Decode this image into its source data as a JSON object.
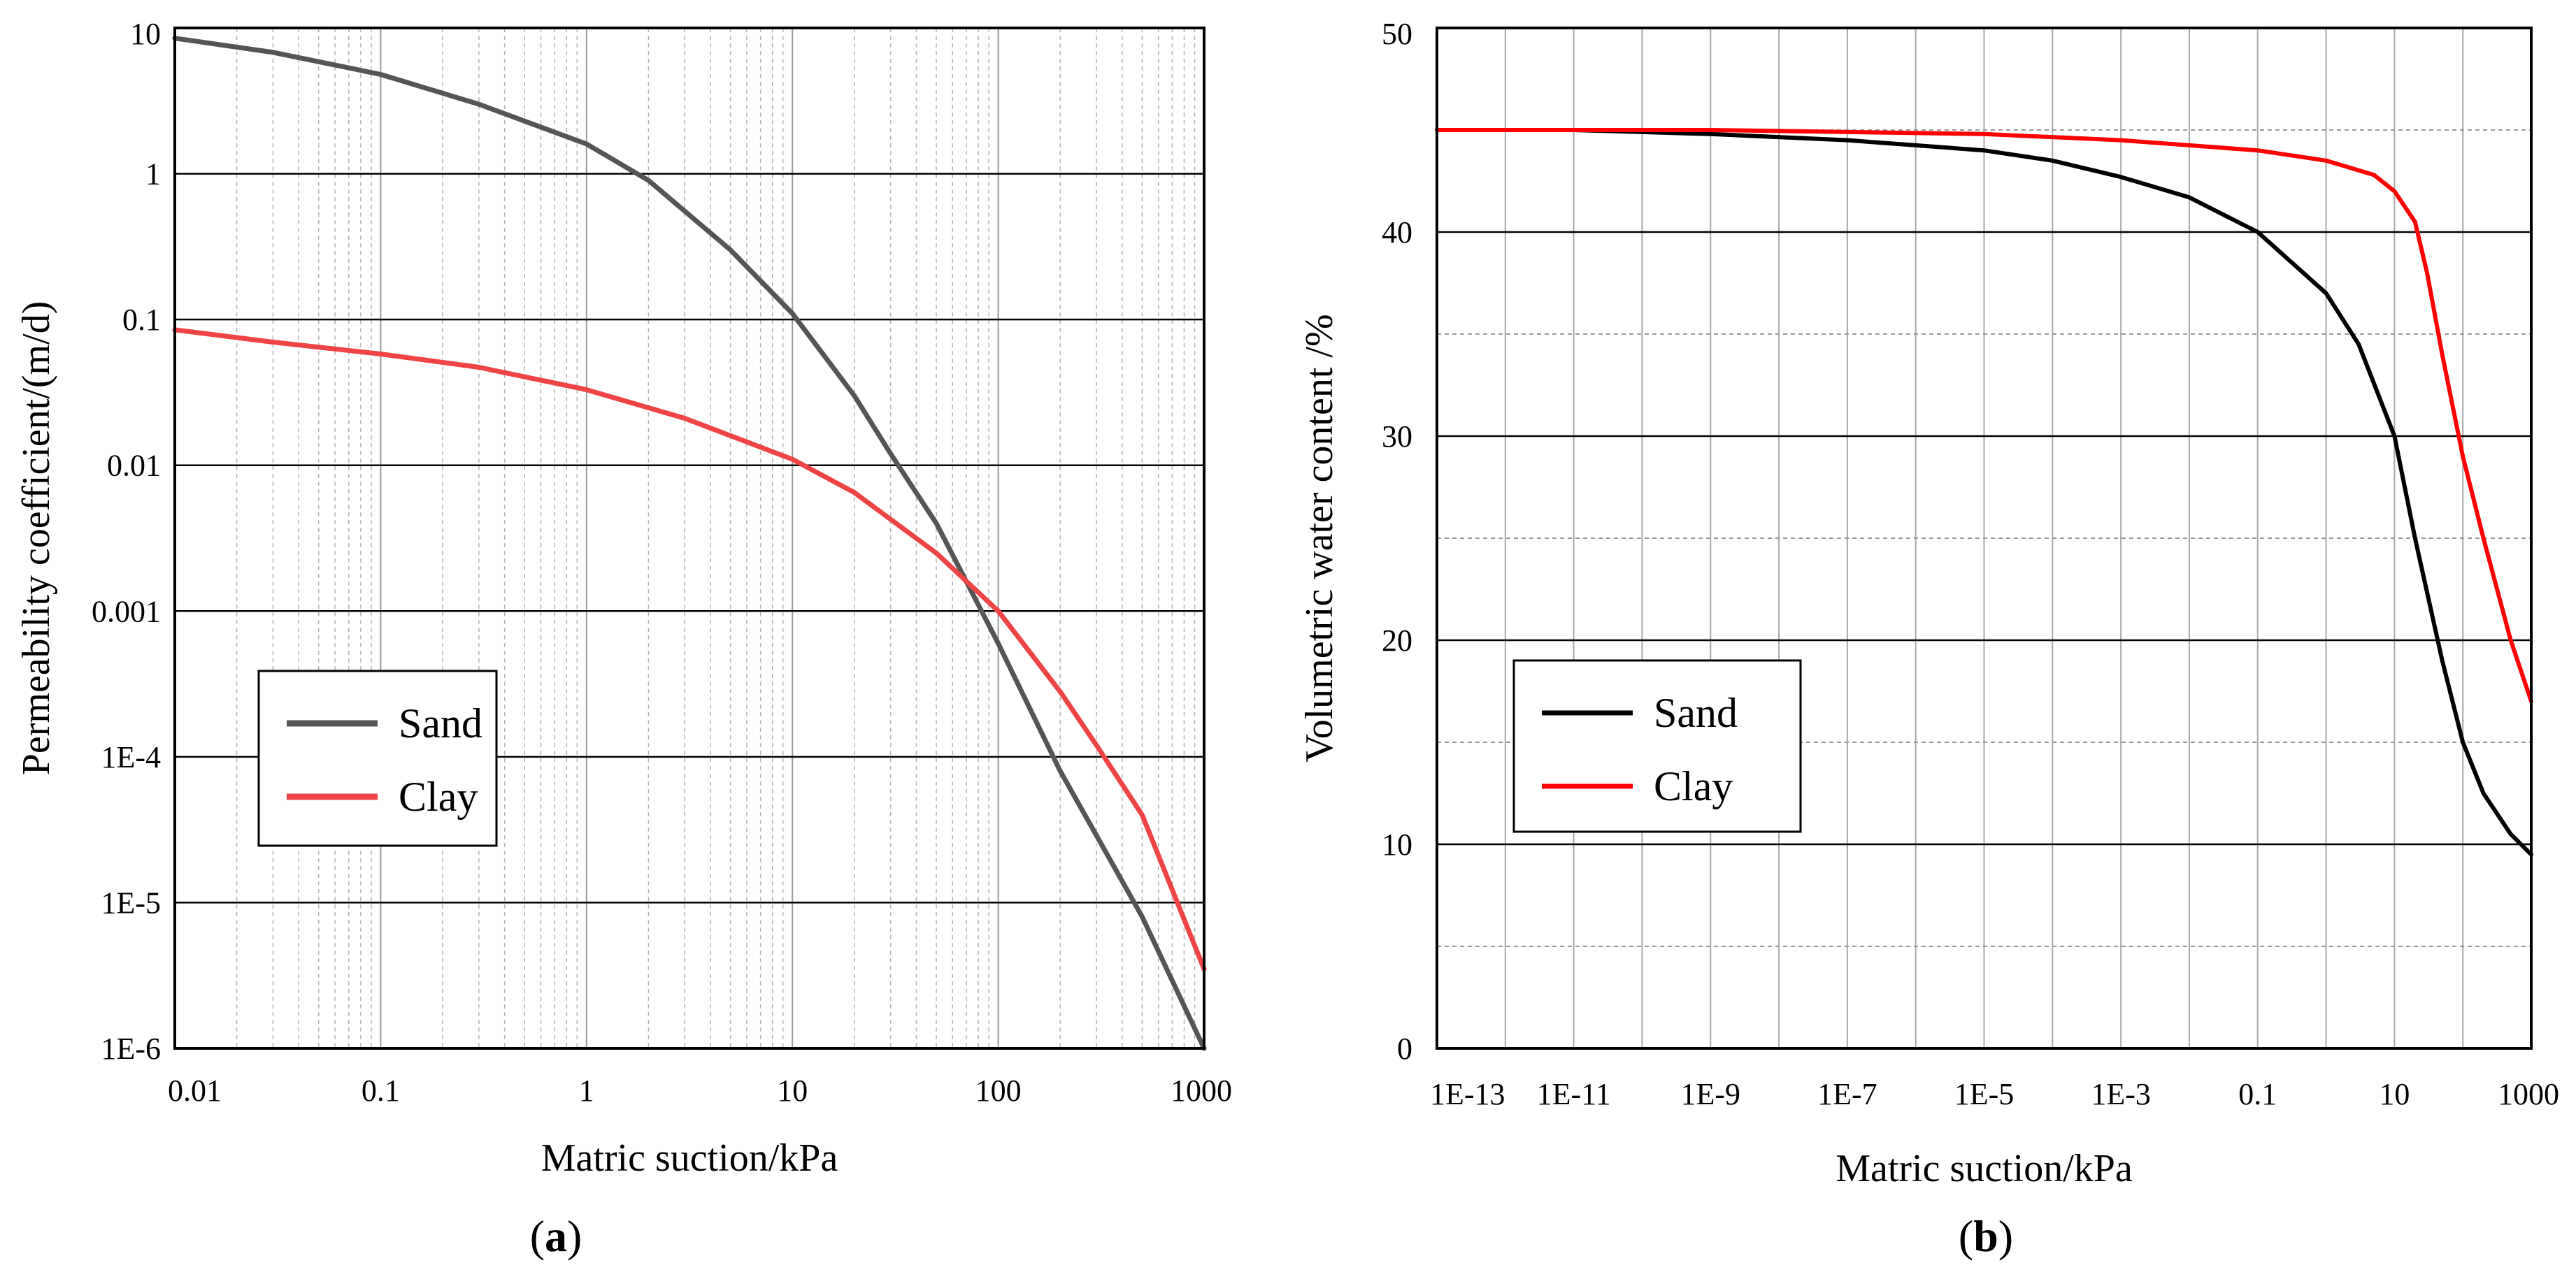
{
  "chart_data": [
    {
      "type": "line",
      "caption_letter": "a",
      "xlabel": "Matric suction/kPa",
      "ylabel": "Permeability coefficient/(m/d)",
      "x_scale": "log",
      "y_scale": "log",
      "xlim": [
        0.01,
        1000
      ],
      "ylim": [
        1e-06,
        10
      ],
      "x_tick_values": [
        0.01,
        0.1,
        1,
        10,
        100,
        1000
      ],
      "x_tick_labels": [
        "0.01",
        "0.1",
        "1",
        "10",
        "100",
        "1000"
      ],
      "y_tick_values": [
        1e-06,
        1e-05,
        0.0001,
        0.001,
        0.01,
        0.1,
        1,
        10
      ],
      "y_tick_labels": [
        "1E-6",
        "1E-5",
        "1E-4",
        "0.001",
        "0.01",
        "0.1",
        "1",
        "10"
      ],
      "grid": true,
      "legend_position": "center-left",
      "series": [
        {
          "name": "Sand",
          "color": "#555555",
          "x": [
            0.01,
            0.03,
            0.1,
            0.3,
            1,
            2,
            5,
            10,
            20,
            30,
            50,
            100,
            200,
            500,
            1000
          ],
          "y": [
            8.5,
            6.8,
            4.8,
            3.0,
            1.6,
            0.9,
            0.3,
            0.11,
            0.03,
            0.012,
            0.004,
            0.0006,
            8e-05,
            8e-06,
            1e-06
          ]
        },
        {
          "name": "Clay",
          "color": "#ef4444",
          "x": [
            0.01,
            0.03,
            0.1,
            0.3,
            1,
            3,
            10,
            20,
            50,
            100,
            200,
            300,
            500,
            1000
          ],
          "y": [
            0.085,
            0.07,
            0.058,
            0.047,
            0.033,
            0.021,
            0.011,
            0.0065,
            0.0025,
            0.001,
            0.00028,
            0.00012,
            4e-05,
            3.5e-06
          ]
        }
      ]
    },
    {
      "type": "line",
      "caption_letter": "b",
      "xlabel": "Matric suction/kPa",
      "ylabel": "Volumetric water content /%",
      "x_scale": "log",
      "y_scale": "linear",
      "xlim": [
        1e-13,
        1000
      ],
      "ylim": [
        0,
        50
      ],
      "x_tick_values": [
        1e-13,
        1e-11,
        1e-09,
        1e-07,
        1e-05,
        0.001,
        0.1,
        10,
        1000
      ],
      "x_tick_labels": [
        "1E-13",
        "1E-11",
        "1E-9",
        "1E-7",
        "1E-5",
        "1E-3",
        "0.1",
        "10",
        "1000"
      ],
      "y_tick_values": [
        0,
        10,
        20,
        30,
        40,
        50
      ],
      "y_tick_labels": [
        "0",
        "10",
        "20",
        "30",
        "40",
        "50"
      ],
      "grid": true,
      "legend_position": "center-left",
      "series": [
        {
          "name": "Sand",
          "color": "#000000",
          "x": [
            1e-13,
            1e-11,
            1e-09,
            1e-07,
            1e-05,
            0.0001,
            0.001,
            0.01,
            0.1,
            1,
            3,
            10,
            20,
            50,
            100,
            200,
            500,
            1000
          ],
          "y": [
            45,
            45,
            44.8,
            44.5,
            44,
            43.5,
            42.7,
            41.7,
            40,
            37,
            34.5,
            30,
            25,
            19,
            15,
            12.5,
            10.5,
            9.5
          ]
        },
        {
          "name": "Clay",
          "color": "#ff0000",
          "x": [
            1e-13,
            1e-09,
            1e-05,
            0.001,
            0.1,
            1,
            5,
            10,
            20,
            30,
            50,
            100,
            200,
            500,
            1000
          ],
          "y": [
            45,
            45,
            44.8,
            44.5,
            44,
            43.5,
            42.8,
            42,
            40.5,
            38,
            34,
            29,
            25,
            20,
            17
          ]
        }
      ]
    }
  ]
}
